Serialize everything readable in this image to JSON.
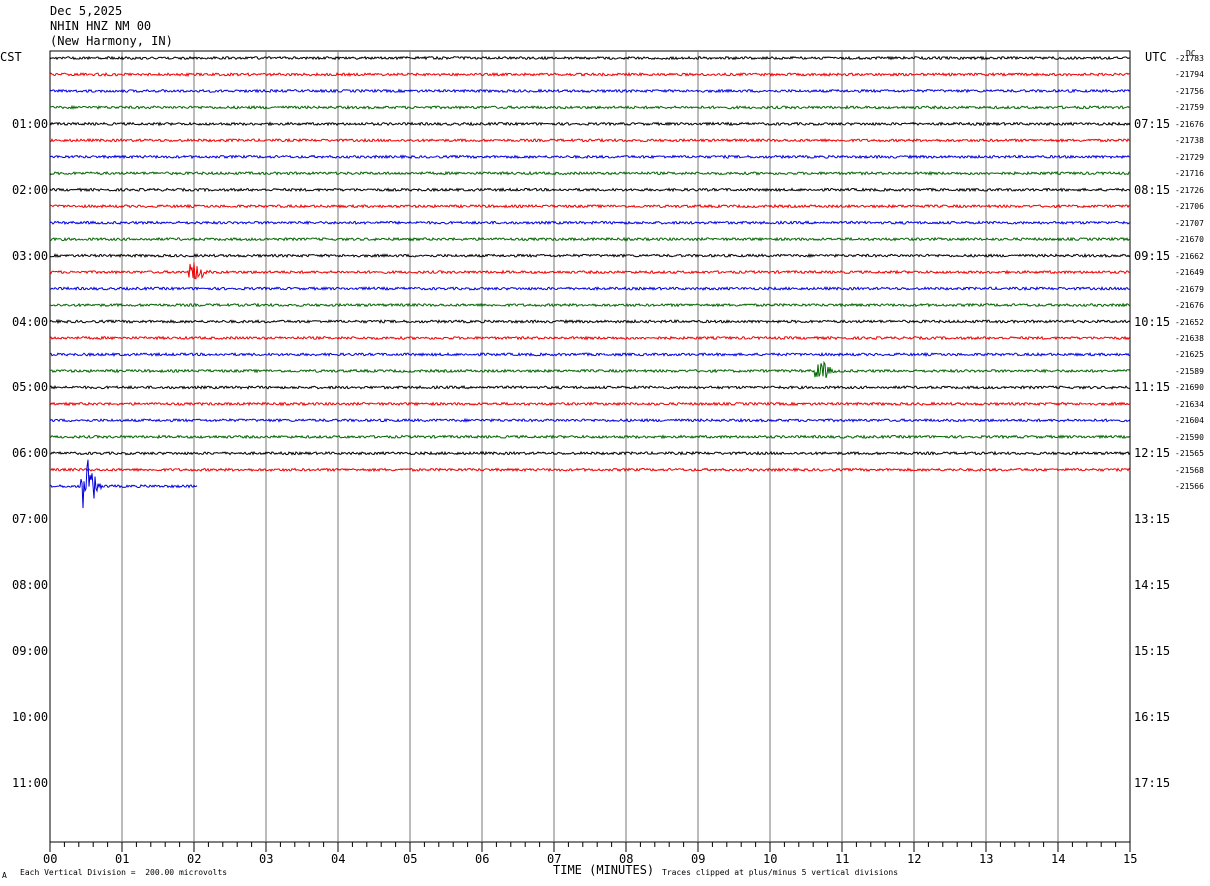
{
  "header": {
    "date": "Dec 5,2025",
    "station": "NHIN HNZ NM 00",
    "location": "(New Harmony, IN)"
  },
  "left_tz": "CST",
  "right_tz": "UTC",
  "dc_label": "DC",
  "footer": {
    "scale": "Each Vertical Division =  200.00 microvolts",
    "clip": "Traces clipped at plus/minus 5 vertical divisions",
    "corner_mark": "A"
  },
  "chart_data": {
    "type": "line",
    "title": "",
    "xlabel": "TIME (MINUTES)",
    "xlim": [
      0,
      15
    ],
    "x_ticks": [
      "00",
      "01",
      "02",
      "03",
      "04",
      "05",
      "06",
      "07",
      "08",
      "09",
      "10",
      "11",
      "12",
      "13",
      "14",
      "15"
    ],
    "left_hour_labels": [
      "01:00",
      "02:00",
      "03:00",
      "04:00",
      "05:00",
      "06:00",
      "07:00",
      "08:00",
      "09:00",
      "10:00",
      "11:00"
    ],
    "right_hour_labels": [
      "07:15",
      "08:15",
      "09:15",
      "10:15",
      "11:15",
      "12:15",
      "13:15",
      "14:15",
      "15:15",
      "16:15",
      "17:15"
    ],
    "minutes_per_line": 15,
    "colors": [
      "#000000",
      "#ee0000",
      "#0000dd",
      "#006600"
    ],
    "dc_offsets": [
      "-21783",
      "-21794",
      "-21756",
      "-21759",
      "-21676",
      "-21738",
      "-21729",
      "-21716",
      "-21726",
      "-21706",
      "-21707",
      "-21670",
      "-21662",
      "-21649",
      "-21679",
      "-21676",
      "-21652",
      "-21638",
      "-21625",
      "-21589",
      "-21690",
      "-21634",
      "-21604",
      "-21590",
      "-21565",
      "-21568",
      "-21566"
    ],
    "trace_count": 27,
    "last_trace_end_minute": 2.05,
    "events": [
      {
        "trace": 13,
        "minute": 2.0,
        "amplitude_div": 2.2
      },
      {
        "trace": 19,
        "minute": 10.7,
        "amplitude_div": 2.0
      },
      {
        "trace": 26,
        "minute": 0.5,
        "amplitude_div": 6.0
      }
    ],
    "grid": true
  }
}
